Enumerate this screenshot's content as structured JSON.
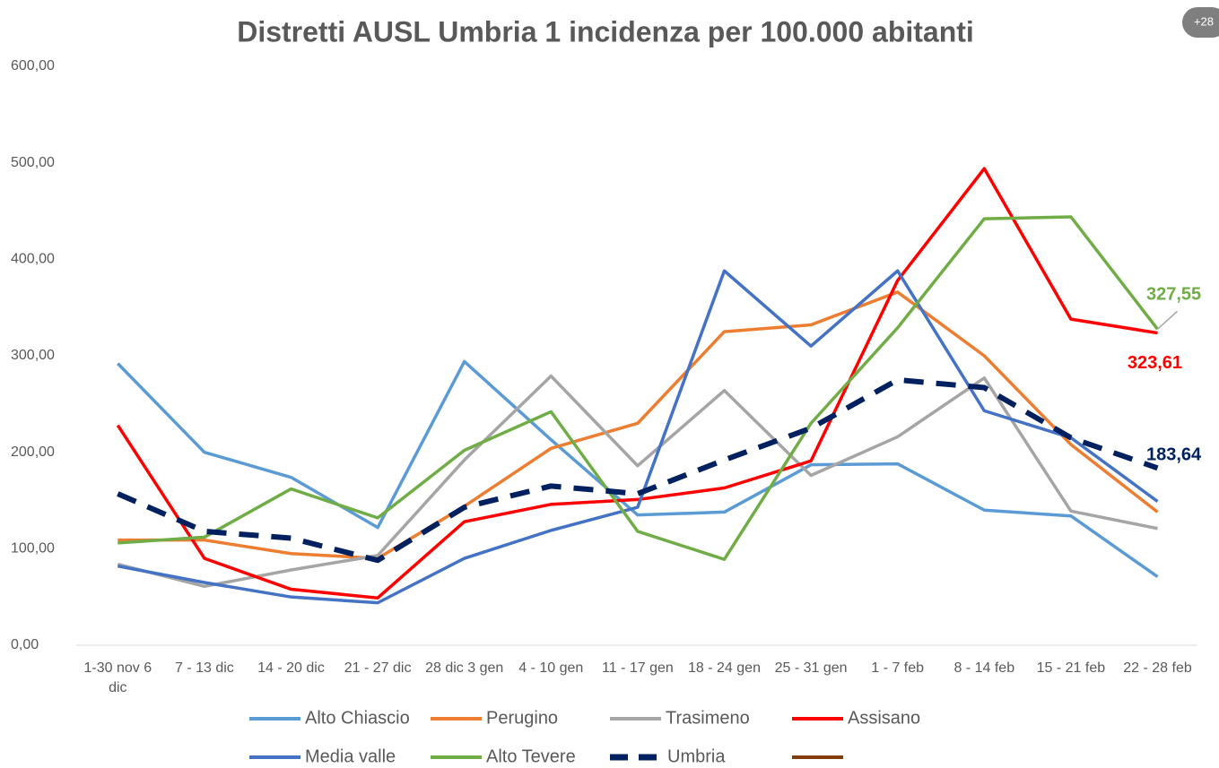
{
  "chart_data": {
    "type": "line",
    "title": "Distretti AUSL Umbria 1 incidenza per 100.000 abitanti",
    "badge": "+28",
    "categories": [
      "1-30 nov 6 dic",
      "7 - 13 dic",
      "14 - 20 dic",
      "21 - 27 dic",
      "28 dic 3 gen",
      "4 - 10 gen",
      "11 - 17 gen",
      "18 - 24 gen",
      "25 - 31 gen",
      "1 - 7 feb",
      "8 - 14 feb",
      "15 - 21 feb",
      "22 - 28 feb"
    ],
    "series": [
      {
        "name": "Alto Chiascio",
        "color": "#5b9bd5",
        "values": [
          292,
          200,
          174,
          122,
          294,
          213,
          135,
          138,
          187,
          188,
          140,
          134,
          71
        ]
      },
      {
        "name": "Perugino",
        "color": "#ed7d31",
        "values": [
          109,
          109,
          95,
          90,
          144,
          204,
          230,
          325,
          332,
          366,
          300,
          208,
          138
        ]
      },
      {
        "name": "Trasimeno",
        "color": "#a5a5a5",
        "values": [
          84,
          61,
          78,
          93,
          192,
          279,
          186,
          264,
          176,
          216,
          277,
          139,
          121
        ]
      },
      {
        "name": "Assisano",
        "color": "#ff0000",
        "values": [
          228,
          90,
          58,
          49,
          128,
          146,
          151,
          163,
          191,
          378,
          494,
          338,
          323.61
        ],
        "value_labels": [
          null,
          null,
          null,
          null,
          null,
          null,
          null,
          null,
          null,
          null,
          null,
          null,
          "323,61"
        ]
      },
      {
        "name": "Media valle",
        "color": "#4472c4",
        "values": [
          82,
          65,
          50,
          44,
          90,
          119,
          143,
          388,
          310,
          388,
          243,
          215,
          149
        ]
      },
      {
        "name": "Alto Tevere",
        "color": "#70ad47",
        "values": [
          106,
          112,
          162,
          132,
          202,
          242,
          118,
          89,
          230,
          329,
          442,
          444,
          327.55
        ],
        "value_labels": [
          null,
          null,
          null,
          null,
          null,
          null,
          null,
          null,
          null,
          null,
          null,
          null,
          "327,55"
        ]
      },
      {
        "name": "Umbria",
        "color": "#002060",
        "dashed": true,
        "values": [
          157,
          118,
          111,
          88,
          143,
          165,
          157,
          192,
          225,
          275,
          267,
          215,
          183.64
        ],
        "value_labels": [
          null,
          null,
          null,
          null,
          null,
          null,
          null,
          null,
          null,
          null,
          null,
          null,
          "183,64"
        ]
      }
    ],
    "ylim": [
      0,
      600
    ],
    "yticks": [
      {
        "value": 0,
        "label": "0,00"
      },
      {
        "value": 100,
        "label": "100,00"
      },
      {
        "value": 200,
        "label": "200,00"
      },
      {
        "value": 300,
        "label": "300,00"
      },
      {
        "value": 400,
        "label": "400,00"
      },
      {
        "value": 500,
        "label": "500,00"
      },
      {
        "value": 600,
        "label": "600,00"
      }
    ],
    "grid": false
  }
}
